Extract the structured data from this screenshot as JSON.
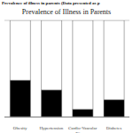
{
  "chart_data": {
    "type": "bar",
    "title": "Prevalence of Illness in Parents",
    "subtitle": "Prevalence of illness in parents (Data presented as p",
    "categories": [
      "Obesity",
      "Hypertension",
      "Cardio-Vascular\nDisease",
      "Diabetes"
    ],
    "series": [
      {
        "color": "#000000",
        "values": [
          38,
          28,
          8,
          18
        ]
      },
      {
        "color": "#ffffff",
        "values": [
          62,
          72,
          92,
          82
        ]
      }
    ],
    "stacked": true,
    "ylim": [
      0,
      100
    ],
    "yticks": [
      0,
      10,
      20,
      30,
      40,
      50,
      60,
      70,
      80,
      90,
      100
    ],
    "grid": true,
    "tick_labels": "x"
  }
}
